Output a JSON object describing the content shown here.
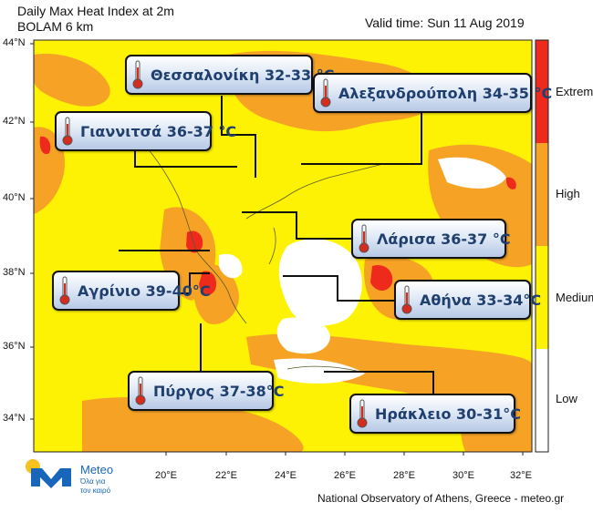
{
  "header": {
    "title": "Daily Max Heat Index at 2m",
    "subtitle": "BOLAM 6 km",
    "valid_time": "Valid time: Sun 11 Aug 2019"
  },
  "axes": {
    "lat_labels": [
      "44°N",
      "42°N",
      "40°N",
      "38°N",
      "36°N",
      "34°N"
    ],
    "lon_labels": [
      "20°E",
      "22°E",
      "24°E",
      "26°E",
      "28°E",
      "30°E",
      "32°E"
    ]
  },
  "legend": {
    "levels": [
      {
        "label": "Extreme",
        "color": "#ee2a1c"
      },
      {
        "label": "High",
        "color": "#f6a325"
      },
      {
        "label": "Medium",
        "color": "#fdf203"
      },
      {
        "label": "Low",
        "color": "#ffffff"
      }
    ]
  },
  "cities": [
    {
      "name": "Θεσσαλονίκη",
      "range": "32-33",
      "unit": "°C"
    },
    {
      "name": "Αλεξανδρούπολη",
      "range": "34-35",
      "unit": "°C"
    },
    {
      "name": "Γιαννιτσά",
      "range": "36-37",
      "unit": "°C"
    },
    {
      "name": "Λάρισα",
      "range": "36-37",
      "unit": "°C"
    },
    {
      "name": "Αγρίνιο",
      "range": "39-40",
      "unit": "°C"
    },
    {
      "name": "Αθήνα",
      "range": "33-34",
      "unit": "°C"
    },
    {
      "name": "Πύργος",
      "range": "37-38",
      "unit": "°C"
    },
    {
      "name": "Ηράκλειο",
      "range": "30-31",
      "unit": "°C"
    }
  ],
  "callout_text": [
    "Θεσσαλονίκη 32-33 °C",
    "Αλεξανδρούπολη 34-35 °C",
    "Γιαννιτσά 36-37 °C",
    "Λάρισα 36-37 °C",
    "Αγρίνιο 39-40°C",
    "Αθήνα 33-34°C",
    "Πύργος 37-38°C",
    "Ηράκλειο 30-31°C"
  ],
  "footer": "National Observatory of Athens, Greece - meteo.gr",
  "logo": {
    "name": "Meteo",
    "tagline_1": "Όλα για",
    "tagline_2": "τον καιρό"
  },
  "colors": {
    "medium": "#fdf203",
    "high": "#f6a325",
    "extreme": "#ee2a1c",
    "low": "#ffffff",
    "callout_text": "#1f3f6f",
    "brand_blue": "#1766b9"
  }
}
